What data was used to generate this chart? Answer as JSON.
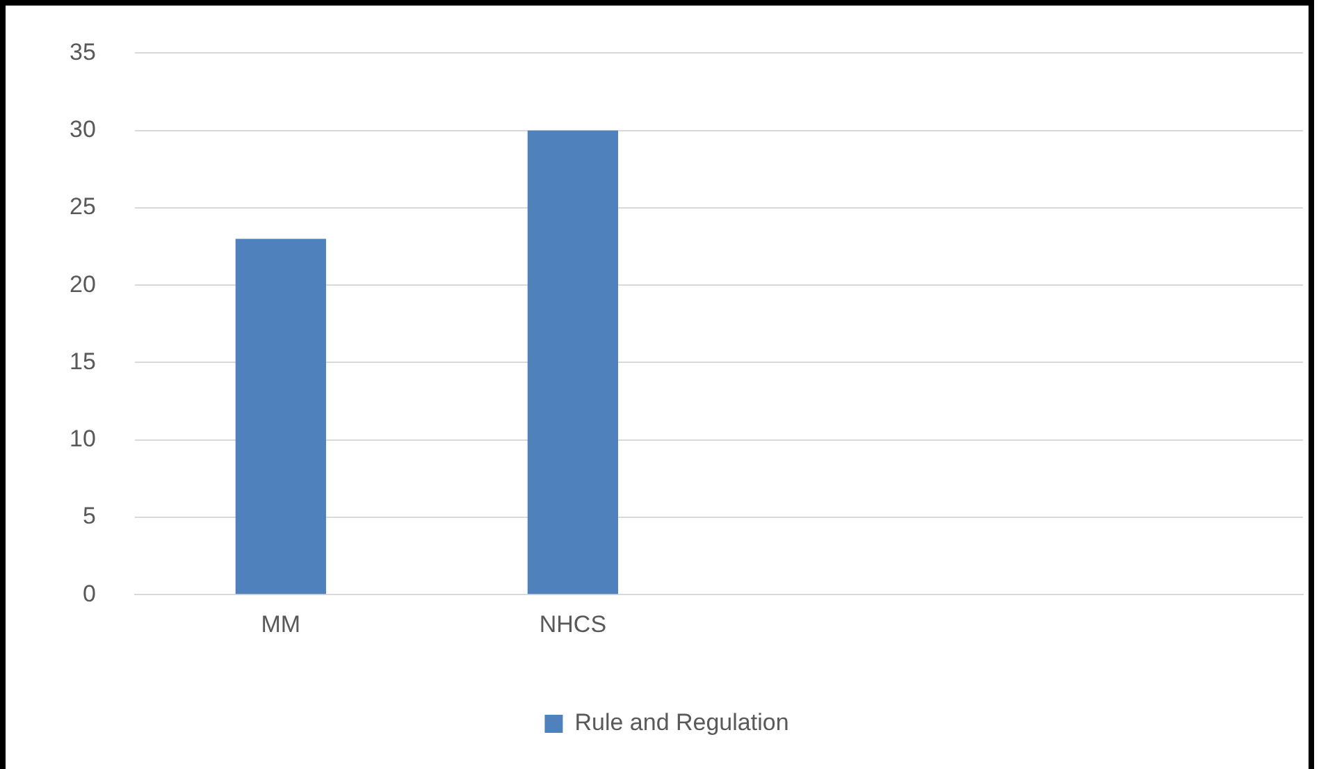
{
  "chart_data": {
    "type": "bar",
    "categories": [
      "MM",
      "NHCS",
      null,
      null
    ],
    "series": [
      {
        "name": "Rule and Regulation",
        "color": "#4f81bd",
        "values": [
          23,
          30,
          null,
          null
        ]
      }
    ],
    "ylim": [
      0,
      35
    ],
    "yticks": [
      0,
      5,
      10,
      15,
      20,
      25,
      30,
      35
    ],
    "grid": "y",
    "legend": "bottom"
  }
}
